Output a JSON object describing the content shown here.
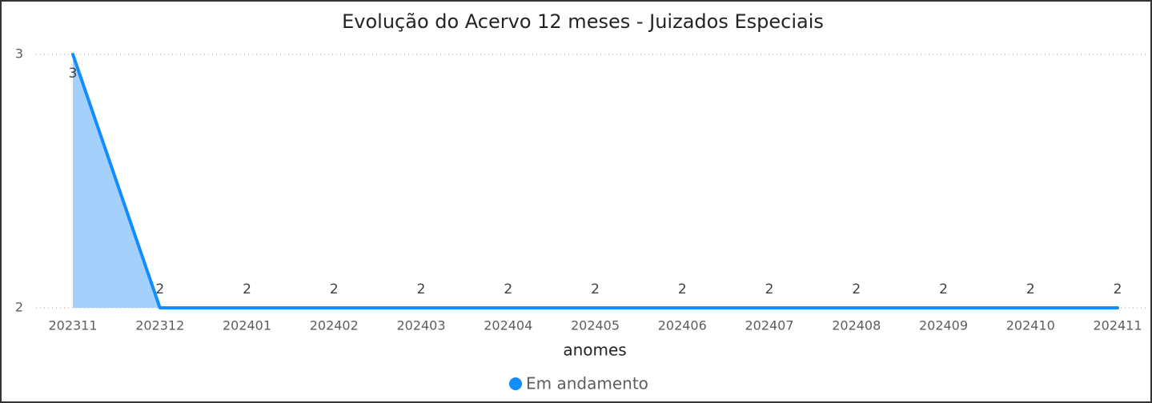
{
  "chart_data": {
    "type": "area",
    "title": "Evolução do Acervo 12 meses - Juizados Especiais",
    "x_label": "anomes",
    "categories": [
      "202311",
      "202312",
      "202401",
      "202402",
      "202403",
      "202404",
      "202405",
      "202406",
      "202407",
      "202408",
      "202409",
      "202410",
      "202411"
    ],
    "series": [
      {
        "name": "Em andamento",
        "color": "#118dff",
        "fill": "#a3d1fb",
        "values": [
          3,
          2,
          2,
          2,
          2,
          2,
          2,
          2,
          2,
          2,
          2,
          2,
          2
        ]
      }
    ],
    "ylim": [
      2,
      3
    ],
    "yticks": [
      2,
      3
    ],
    "grid": true,
    "data_labels": true,
    "legend": "bottom"
  }
}
